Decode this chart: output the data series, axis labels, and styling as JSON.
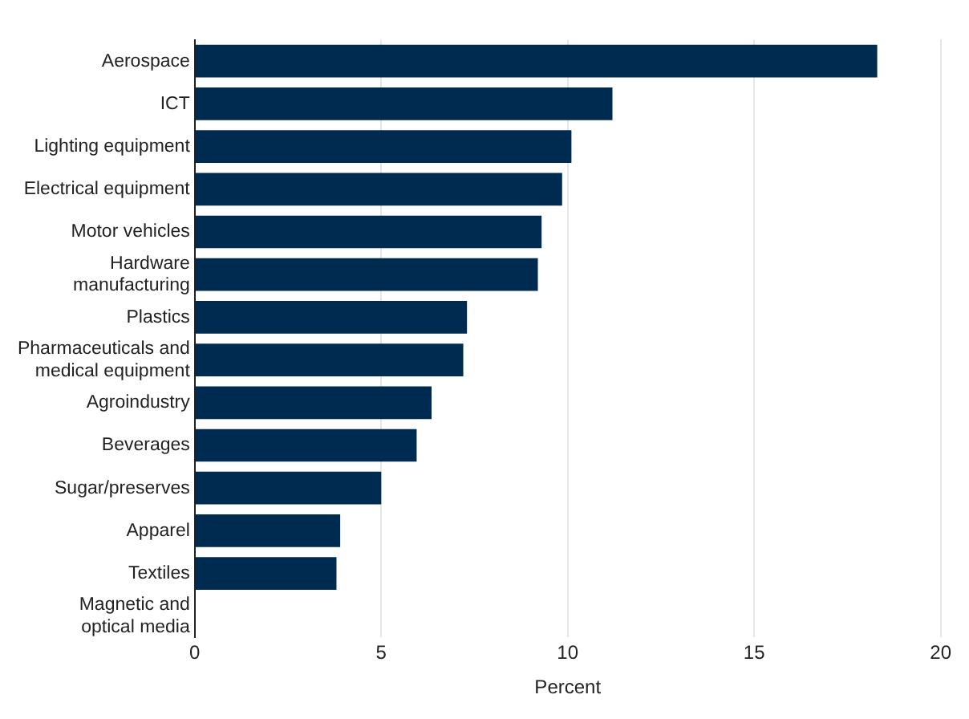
{
  "chart_data": {
    "type": "bar",
    "orientation": "horizontal",
    "xlabel": "Percent",
    "categories": [
      "Aerospace",
      "ICT",
      "Lighting equipment",
      "Electrical equipment",
      "Motor vehicles",
      "Hardware\nmanufacturing",
      "Plastics",
      "Pharmaceuticals and\nmedical equipment",
      "Agroindustry",
      "Beverages",
      "Sugar/preserves",
      "Apparel",
      "Textiles",
      "Magnetic and\noptical media"
    ],
    "values": [
      18.3,
      11.2,
      10.1,
      9.85,
      9.3,
      9.2,
      7.3,
      7.2,
      6.35,
      5.95,
      5.0,
      3.9,
      3.8,
      0
    ],
    "color": "#002b50",
    "xlim": [
      0,
      20
    ],
    "xticks": [
      0,
      5,
      10,
      15,
      20
    ],
    "grid": "x",
    "legend": false
  }
}
